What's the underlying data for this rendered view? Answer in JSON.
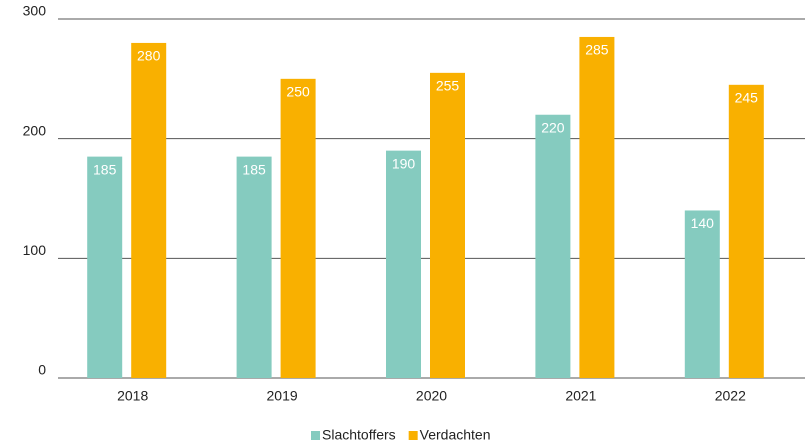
{
  "chart_data": {
    "type": "bar",
    "categories": [
      "2018",
      "2019",
      "2020",
      "2021",
      "2022"
    ],
    "series": [
      {
        "name": "Slachtoffers",
        "color": "#85cbbf",
        "values": [
          185,
          185,
          190,
          220,
          140
        ]
      },
      {
        "name": "Verdachten",
        "color": "#f9b000",
        "values": [
          280,
          250,
          255,
          285,
          245
        ]
      }
    ],
    "ylim": [
      0,
      300
    ],
    "yticks": [
      0,
      100,
      200,
      300
    ],
    "grid": true,
    "legend": "bottom"
  }
}
